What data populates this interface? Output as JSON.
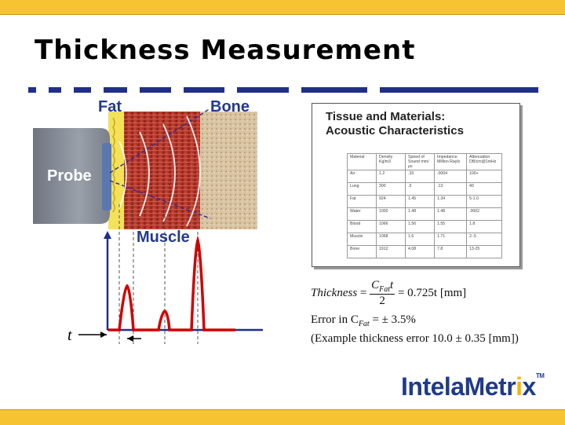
{
  "slide": {
    "title": "Thickness Measurement",
    "colors": {
      "accent_bar": "#f6c332",
      "title_rule": "#1f2f8a",
      "brand_blue": "#243a8c",
      "echo_red": "#d00000"
    }
  },
  "illustration": {
    "fat_label": "Fat",
    "bone_label": "Bone",
    "probe_label": "Probe",
    "muscle_label": "Muscle",
    "time_label": "t"
  },
  "table": {
    "title_line1": "Tissue and Materials:",
    "title_line2": "Acoustic Characteristics",
    "headers": [
      "Material",
      "Density Kg/m3",
      "Speed of Sound mm/μs",
      "Impedance Million Rayls",
      "Attenuation DB/cm@1mHz"
    ],
    "rows": [
      [
        "Air",
        "1.2",
        ".33",
        ".0004",
        "100+"
      ],
      [
        "Lung",
        "300",
        ".5",
        ".13",
        "40"
      ],
      [
        "Fat",
        "924",
        "1.45",
        "1.34",
        "5-1.0"
      ],
      [
        "Water",
        "1000",
        "1.48",
        "1.48",
        ".0002"
      ],
      [
        "Blood",
        "1066",
        "1.56",
        "1.55",
        "1.8"
      ],
      [
        "Muscle",
        "1068",
        "1.6",
        "1.71",
        "2-.5"
      ],
      [
        "Bone",
        "1912",
        "4.08",
        "7.8",
        "13-25"
      ]
    ]
  },
  "formula": {
    "lhs": "Thickness",
    "numerator": "C",
    "numerator_sub": "Fat",
    "numerator_tail": "t",
    "denominator": "2",
    "rhs": "= 0.725t [mm]",
    "error_prefix": "Error in C",
    "error_sub": "Fat",
    "error_suffix": "= ± 3.5%",
    "example": "(Example thickness error 10.0 ± 0.35 [mm])"
  },
  "logo": {
    "text_before": "IntelaMetr",
    "text_i": "i",
    "text_after": "x",
    "tm": "TM"
  }
}
